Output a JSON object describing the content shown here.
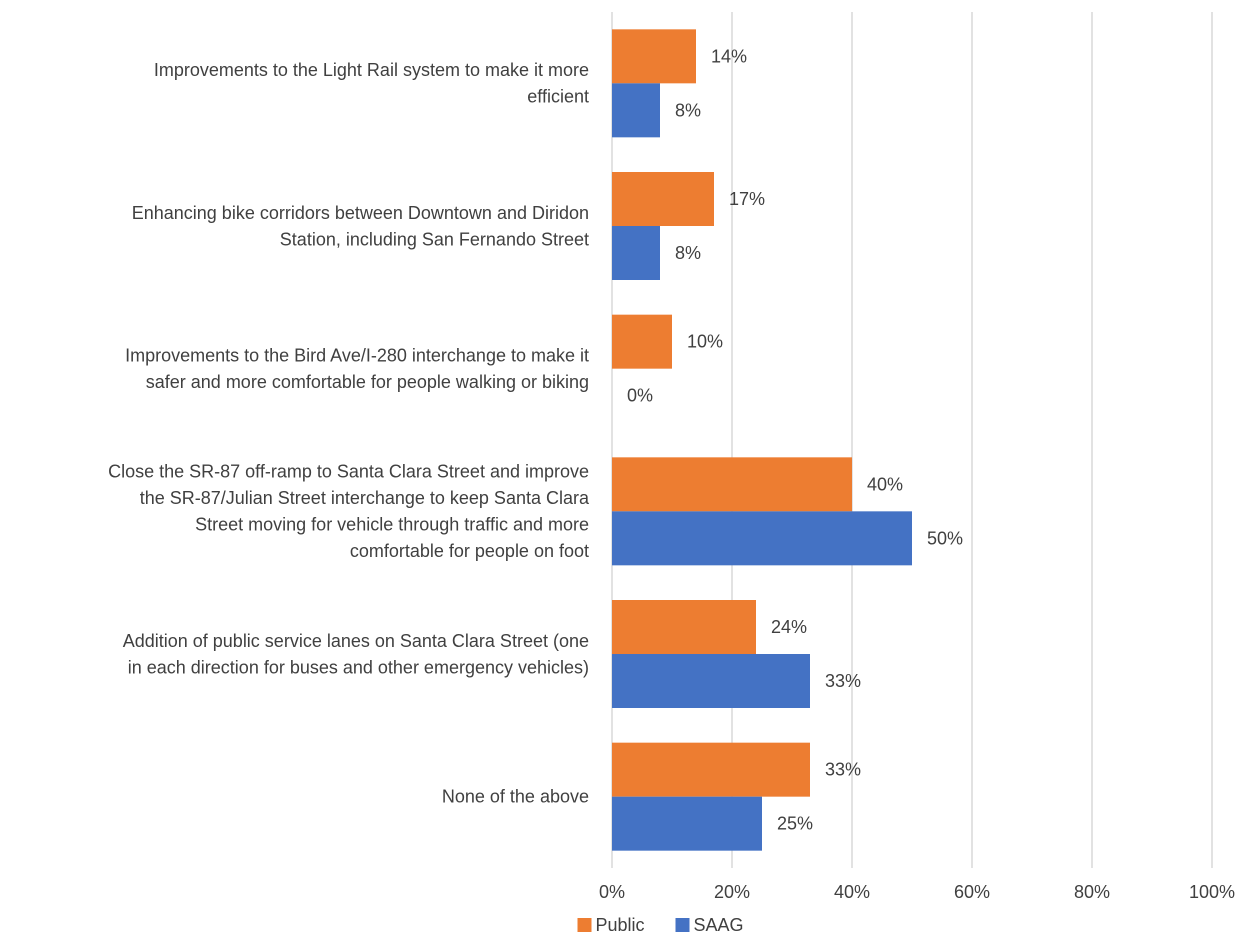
{
  "chart_data": {
    "type": "bar",
    "orientation": "horizontal",
    "categories": [
      [
        "Improvements to the Light Rail system to make it more",
        "efficient"
      ],
      [
        "Enhancing bike corridors between Downtown and Diridon",
        "Station, including San Fernando Street"
      ],
      [
        "Improvements to the Bird Ave/I-280 interchange to make it",
        "safer and more comfortable for people walking or biking"
      ],
      [
        "Close the SR-87 off-ramp to Santa Clara Street and improve",
        "the SR-87/Julian Street interchange to keep Santa Clara",
        "Street moving for vehicle through traffic and more",
        "comfortable for people on foot"
      ],
      [
        "Addition of public service lanes on Santa Clara Street (one",
        "in each direction for buses and other emergency vehicles)"
      ],
      [
        "None of the above"
      ]
    ],
    "series": [
      {
        "name": "Public",
        "color": "#ED7D31",
        "values": [
          14,
          17,
          10,
          40,
          24,
          33
        ],
        "labels": [
          "14%",
          "17%",
          "10%",
          "40%",
          "24%",
          "33%"
        ]
      },
      {
        "name": "SAAG",
        "color": "#4472C4",
        "values": [
          8,
          8,
          0,
          50,
          33,
          25
        ],
        "labels": [
          "8%",
          "8%",
          "0%",
          "50%",
          "33%",
          "25%"
        ]
      }
    ],
    "xlim": [
      0,
      100
    ],
    "x_ticks": [
      0,
      20,
      40,
      60,
      80,
      100
    ],
    "x_tick_labels": [
      "0%",
      "20%",
      "40%",
      "60%",
      "80%",
      "100%"
    ],
    "grid": true,
    "legend": "bottom-center",
    "title": "",
    "xlabel": "",
    "ylabel": ""
  }
}
